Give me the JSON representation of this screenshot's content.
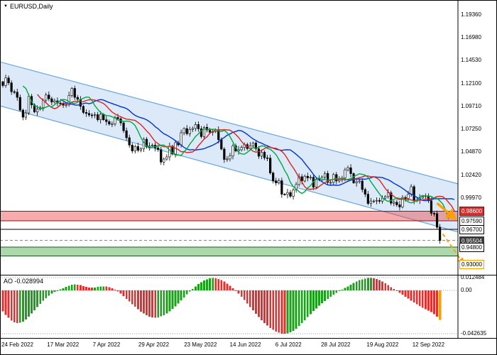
{
  "window": {
    "symbol": "EURUSD,Daily"
  },
  "chart_data": {
    "type": "candlestick",
    "title": "EURUSD,Daily",
    "x_labels": [
      "24 Feb 2022",
      "17 Mar 2022",
      "7 Apr 2022",
      "29 Apr 2022",
      "23 May 2022",
      "14 Jun 2022",
      "6 Jul 2022",
      "28 Jul 2022",
      "19 Aug 2022",
      "12 Sep 2022"
    ],
    "price_axis": {
      "view_top": 1.205,
      "view_bottom": 0.921,
      "ticks": [
        {
          "label": "1.19360",
          "value": 1.1936
        },
        {
          "label": "1.16980",
          "value": 1.1698
        },
        {
          "label": "1.14530",
          "value": 1.1453
        },
        {
          "label": "1.12100",
          "value": 1.121
        },
        {
          "label": "1.09710",
          "value": 1.0971
        },
        {
          "label": "1.07250",
          "value": 1.0725
        },
        {
          "label": "1.04870",
          "value": 1.0487
        },
        {
          "label": "1.02420",
          "value": 1.0242
        },
        {
          "label": "0.99970",
          "value": 0.9997
        }
      ],
      "levels": [
        {
          "label": "0.98600",
          "value": 0.986,
          "style": "resistance"
        },
        {
          "label": "0.97590",
          "value": 0.9759,
          "style": "plain"
        },
        {
          "label": "0.96700",
          "value": 0.967,
          "style": "plain"
        },
        {
          "label": "0.95504",
          "value": 0.95504,
          "style": "current"
        },
        {
          "label": "0.94800",
          "value": 0.948,
          "style": "plain"
        },
        {
          "label": "0.93000",
          "value": 0.93,
          "style": "target"
        }
      ]
    },
    "closes": [
      1.119,
      1.127,
      1.1218,
      1.1125,
      1.112,
      1.1065,
      1.093,
      1.0855,
      1.09,
      1.1075,
      1.0985,
      1.091,
      1.094,
      1.0955,
      1.1035,
      1.109,
      1.105,
      1.1015,
      1.1028,
      1.1005,
      1.0997,
      1.0982,
      1.0985,
      1.1085,
      1.116,
      1.1065,
      1.1045,
      1.097,
      1.0905,
      1.0895,
      1.0878,
      1.0875,
      1.0882,
      1.0828,
      1.0886,
      1.0828,
      1.0808,
      1.0782,
      1.0785,
      1.0852,
      1.0838,
      1.0795,
      1.0712,
      1.0638,
      1.056,
      1.0498,
      1.0545,
      1.0505,
      1.052,
      1.0622,
      1.054,
      1.055,
      1.056,
      1.053,
      1.0512,
      1.038,
      1.0412,
      1.0435,
      1.0548,
      1.0465,
      1.0585,
      1.0562,
      1.069,
      1.0735,
      1.068,
      1.0725,
      1.0735,
      1.0778,
      1.0732,
      1.065,
      1.0748,
      1.072,
      1.0695,
      1.0702,
      1.0718,
      1.0617,
      1.0518,
      1.0408,
      1.0413,
      1.0445,
      1.0552,
      1.0498,
      1.051,
      1.0535,
      1.0565,
      1.0523,
      1.0553,
      1.0582,
      1.052,
      1.0442,
      1.0484,
      1.0425,
      1.0422,
      1.0265,
      1.0182,
      1.016,
      1.0183,
      1.004,
      1.0037,
      1.0058,
      1.0018,
      1.0085,
      1.0143,
      1.0225,
      1.018,
      1.023,
      1.0213,
      1.022,
      1.0115,
      1.02,
      1.0196,
      1.022,
      1.026,
      1.0165,
      1.0165,
      1.0248,
      1.018,
      1.0193,
      1.0212,
      1.0298,
      1.032,
      1.0258,
      1.016,
      1.0172,
      1.018,
      1.009,
      1.004,
      0.9942,
      0.9968,
      0.9968,
      0.9975,
      0.9965,
      0.9998,
      1.0015,
      1.0055,
      0.9945,
      0.9955,
      0.9928,
      0.9905,
      1.0005,
      0.9995,
      1.004,
      1.012,
      0.997,
      0.9978,
      1.0,
      1.0015,
      1.0023,
      0.997,
      0.9838,
      0.9835,
      0.969,
      0.95504
    ],
    "channel": {
      "upper": [
        1.144,
        1.015
      ],
      "lower": [
        1.0975,
        0.964
      ],
      "fill": "#cfe2f6",
      "border": "#6aa5dd"
    },
    "zones": [
      {
        "name": "resistance",
        "from": 0.9759,
        "to": 0.986,
        "fill": "rgba(235,70,70,0.45)",
        "border": "#991111"
      },
      {
        "name": "support",
        "from": 0.9385,
        "to": 0.948,
        "fill": "rgba(60,160,60,0.42)",
        "border": "#1a5c1a"
      }
    ],
    "hlines": [
      {
        "value": 0.967,
        "color": "#000000",
        "dash": ""
      },
      {
        "value": 0.95504,
        "color": "#888888",
        "dash": "4 3"
      }
    ],
    "arrows": [
      {
        "kind": "solid",
        "from_i": 151,
        "from_price": 0.9945,
        "to_i": 157,
        "to_price": 0.979,
        "color": "#ffa000",
        "width": 3.5
      },
      {
        "kind": "dashed",
        "from_i": 153,
        "from_price": 0.962,
        "to_i": 160,
        "to_price": 0.9315,
        "color": "#ffa000",
        "width": 2
      }
    ],
    "alligator": {
      "jaw": {
        "period": 13,
        "shift": 8,
        "color": "#0033cc"
      },
      "teeth": {
        "period": 8,
        "shift": 5,
        "color": "#dd2222"
      },
      "lips": {
        "period": 5,
        "shift": 3,
        "color": "#00a83c"
      }
    },
    "candle_colors": {
      "up_fill": "#ffffff",
      "down_fill": "#000000",
      "outline": "#000000"
    },
    "ao": {
      "title": "AO",
      "value_label": "-0.028994",
      "view_top": 0.014,
      "view_bottom": -0.046,
      "axis": [
        {
          "label": "0.012484",
          "value": 0.012484
        },
        {
          "label": "0.00",
          "value": 0
        },
        {
          "label": "-0.042635",
          "value": -0.042635
        }
      ],
      "colors": {
        "up": "#19a119",
        "down": "#e03030",
        "signal": "#ff9d00"
      },
      "values": [
        -0.0205,
        -0.024,
        -0.0268,
        -0.0295,
        -0.0315,
        -0.0322,
        -0.0318,
        -0.0305,
        -0.0285,
        -0.0258,
        -0.0228,
        -0.0196,
        -0.0164,
        -0.0132,
        -0.0102,
        -0.0075,
        -0.0052,
        -0.0032,
        -0.0015,
        -0.0002,
        0.001,
        0.0022,
        0.0034,
        0.0046,
        0.0055,
        0.006,
        0.0058,
        0.0052,
        0.0044,
        0.0036,
        0.003,
        0.0028,
        0.003,
        0.0034,
        0.0038,
        0.004,
        0.0038,
        0.0032,
        0.0022,
        0.0008,
        -0.001,
        -0.0032,
        -0.0056,
        -0.0082,
        -0.0108,
        -0.0134,
        -0.016,
        -0.0185,
        -0.0208,
        -0.0228,
        -0.0245,
        -0.0258,
        -0.0266,
        -0.0268,
        -0.0264,
        -0.0255,
        -0.0242,
        -0.0225,
        -0.0205,
        -0.0182,
        -0.0156,
        -0.0128,
        -0.0098,
        -0.0068,
        -0.0038,
        -0.001,
        0.0016,
        0.004,
        0.0062,
        0.0082,
        0.0098,
        0.011,
        0.0118,
        0.0122,
        0.012,
        0.0113,
        0.0102,
        0.0087,
        0.0068,
        0.0046,
        0.0022,
        -0.0004,
        -0.0032,
        -0.0062,
        -0.0094,
        -0.0128,
        -0.0162,
        -0.0196,
        -0.023,
        -0.0262,
        -0.0292,
        -0.032,
        -0.0345,
        -0.0368,
        -0.0388,
        -0.0404,
        -0.0416,
        -0.0424,
        -0.0426,
        -0.0422,
        -0.0412,
        -0.0396,
        -0.0375,
        -0.035,
        -0.0322,
        -0.0292,
        -0.0262,
        -0.0232,
        -0.0203,
        -0.0176,
        -0.015,
        -0.0126,
        -0.0103,
        -0.0082,
        -0.0062,
        -0.0043,
        -0.0025,
        -0.0008,
        0.0008,
        0.0024,
        0.004,
        0.0056,
        0.0072,
        0.0087,
        0.01,
        0.011,
        0.0117,
        0.0121,
        0.0122,
        0.0119,
        0.0112,
        0.0101,
        0.0087,
        0.007,
        0.0052,
        0.0033,
        0.0014,
        -0.0005,
        -0.0024,
        -0.0043,
        -0.0062,
        -0.0081,
        -0.01,
        -0.0119,
        -0.0137,
        -0.0154,
        -0.017,
        -0.0185,
        -0.0199,
        -0.0214,
        -0.0233,
        -0.0259,
        -0.028994
      ]
    }
  }
}
